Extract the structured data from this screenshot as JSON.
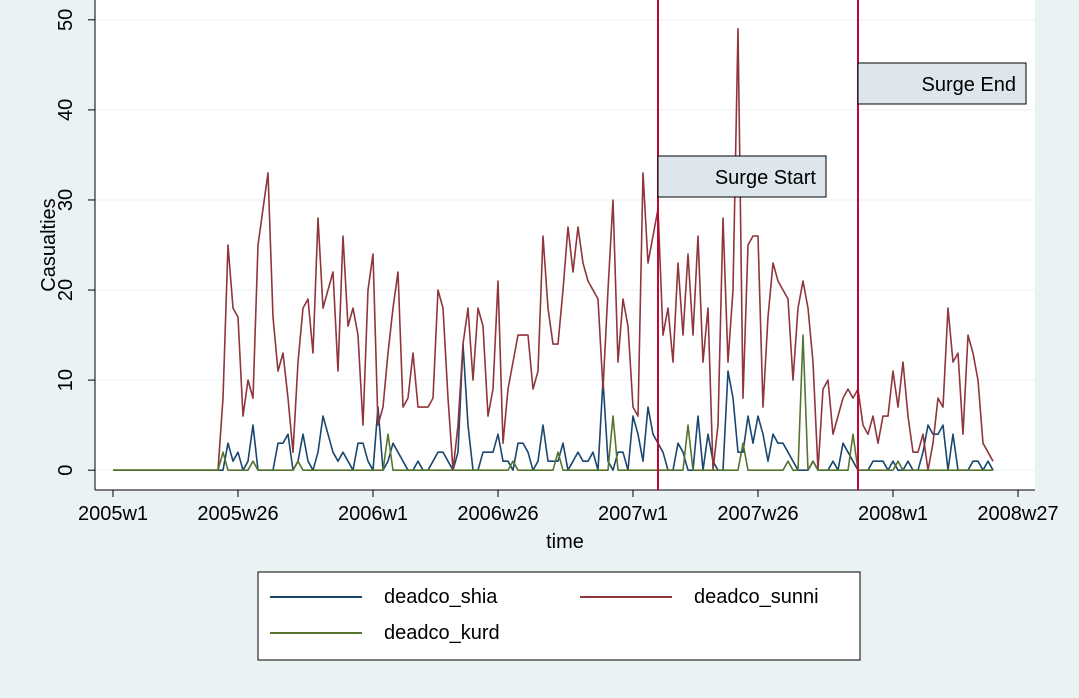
{
  "chart_data": {
    "type": "line",
    "y_label": "Casualties",
    "x_label": "time",
    "x": [
      0,
      1,
      2,
      3,
      4,
      5,
      6,
      7,
      8,
      9,
      10,
      11,
      12,
      13,
      14,
      15,
      16,
      17,
      18,
      19,
      20,
      21,
      22,
      23,
      24,
      25,
      26,
      27,
      28,
      29,
      30,
      31,
      32,
      33,
      34,
      35,
      36,
      37,
      38,
      39,
      40,
      41,
      42,
      43,
      44,
      45,
      46,
      47,
      48,
      49,
      50,
      51,
      52,
      53,
      54,
      55,
      56,
      57,
      58,
      59,
      60,
      61,
      62,
      63,
      64,
      65,
      66,
      67,
      68,
      69,
      70,
      71,
      72,
      73,
      74,
      75,
      76,
      77,
      78,
      79,
      80,
      81,
      82,
      83,
      84,
      85,
      86,
      87,
      88,
      89,
      90,
      91,
      92,
      93,
      94,
      95,
      96,
      97,
      98,
      99,
      100,
      101,
      102,
      103,
      104,
      105,
      106,
      107,
      108,
      109,
      110,
      111,
      112,
      113,
      114,
      115,
      116,
      117,
      118,
      119,
      120,
      121,
      122,
      123,
      124,
      125,
      126,
      127,
      128,
      129,
      130,
      131,
      132,
      133,
      134,
      135,
      136,
      137,
      138,
      139,
      140,
      141,
      142,
      143,
      144,
      145,
      146,
      147,
      148,
      149,
      150,
      151,
      152,
      153,
      154,
      155,
      156,
      157,
      158,
      159,
      160,
      161,
      162,
      163,
      164,
      165,
      166,
      167,
      168,
      169,
      170,
      171,
      172,
      173,
      174,
      175,
      176
    ],
    "series": [
      {
        "name": "deadco_shia",
        "color": "#1a476f",
        "values": [
          0,
          0,
          0,
          0,
          0,
          0,
          0,
          0,
          0,
          0,
          0,
          0,
          0,
          0,
          0,
          0,
          0,
          0,
          0,
          0,
          0,
          0,
          0,
          3,
          1,
          2,
          0,
          1,
          5,
          0,
          0,
          0,
          0,
          3,
          3,
          4,
          0,
          1,
          4,
          1,
          0,
          2,
          6,
          4,
          2,
          1,
          2,
          1,
          0,
          3,
          3,
          1,
          0,
          7,
          0,
          1,
          3,
          2,
          1,
          0,
          0,
          1,
          0,
          0,
          1,
          2,
          2,
          1,
          0,
          2,
          14,
          5,
          0,
          0,
          2,
          2,
          2,
          4,
          1,
          1,
          0,
          3,
          3,
          2,
          0,
          1,
          5,
          1,
          1,
          1,
          3,
          0,
          1,
          2,
          1,
          1,
          2,
          0,
          10,
          1,
          0,
          2,
          2,
          0,
          6,
          4,
          1,
          7,
          4,
          3,
          2,
          0,
          0,
          3,
          2,
          0,
          0,
          6,
          0,
          4,
          1,
          0,
          0,
          11,
          8,
          2,
          2,
          6,
          3,
          6,
          4,
          1,
          4,
          3,
          3,
          2,
          1,
          0,
          0,
          0,
          1,
          0,
          0,
          0,
          1,
          0,
          3,
          2,
          1,
          0,
          0,
          0,
          1,
          1,
          1,
          0,
          1,
          0,
          0,
          1,
          0,
          0,
          2,
          5,
          4,
          4,
          5,
          0,
          4,
          0,
          0,
          0,
          1,
          1,
          0,
          1,
          0
        ]
      },
      {
        "name": "deadco_sunni",
        "color": "#90353b",
        "values": [
          0,
          0,
          0,
          0,
          0,
          0,
          0,
          0,
          0,
          0,
          0,
          0,
          0,
          0,
          0,
          0,
          0,
          0,
          0,
          0,
          0,
          0,
          8,
          25,
          18,
          17,
          6,
          10,
          8,
          25,
          29,
          33,
          17,
          11,
          13,
          8,
          2,
          12,
          18,
          19,
          13,
          28,
          18,
          20,
          22,
          11,
          26,
          16,
          18,
          15,
          5,
          20,
          24,
          5,
          7,
          13,
          18,
          22,
          7,
          8,
          13,
          7,
          7,
          7,
          8,
          20,
          18,
          8,
          0,
          5,
          14,
          18,
          10,
          18,
          16,
          6,
          9,
          21,
          3,
          9,
          12,
          15,
          15,
          15,
          9,
          11,
          26,
          18,
          14,
          14,
          20,
          27,
          22,
          27,
          23,
          21,
          20,
          19,
          9,
          20,
          30,
          12,
          19,
          16,
          7,
          6,
          33,
          23,
          26,
          29,
          15,
          18,
          12,
          23,
          15,
          24,
          15,
          26,
          12,
          18,
          0,
          5,
          28,
          12,
          20,
          49,
          8,
          25,
          26,
          26,
          7,
          17,
          23,
          21,
          20,
          19,
          10,
          18,
          21,
          18,
          12,
          0,
          9,
          10,
          4,
          6,
          8,
          9,
          8,
          9,
          5,
          4,
          6,
          3,
          6,
          6,
          11,
          7,
          12,
          6,
          2,
          2,
          4,
          0,
          3,
          8,
          7,
          18,
          12,
          13,
          4,
          15,
          13,
          10,
          3,
          2,
          1
        ]
      },
      {
        "name": "deadco_kurd",
        "color": "#55752f",
        "values": [
          0,
          0,
          0,
          0,
          0,
          0,
          0,
          0,
          0,
          0,
          0,
          0,
          0,
          0,
          0,
          0,
          0,
          0,
          0,
          0,
          0,
          0,
          2,
          0,
          0,
          0,
          0,
          0,
          1,
          0,
          0,
          0,
          0,
          0,
          0,
          0,
          0,
          1,
          0,
          0,
          0,
          0,
          0,
          0,
          0,
          0,
          0,
          0,
          0,
          0,
          0,
          0,
          0,
          0,
          0,
          4,
          0,
          0,
          0,
          0,
          0,
          0,
          0,
          0,
          0,
          0,
          0,
          0,
          0,
          0,
          0,
          0,
          0,
          0,
          0,
          0,
          0,
          0,
          0,
          0,
          1,
          0,
          0,
          0,
          0,
          0,
          0,
          0,
          0,
          2,
          0,
          0,
          0,
          0,
          0,
          0,
          0,
          0,
          0,
          0,
          6,
          0,
          0,
          0,
          0,
          0,
          0,
          0,
          0,
          0,
          0,
          0,
          0,
          0,
          0,
          5,
          0,
          0,
          0,
          0,
          0,
          0,
          0,
          0,
          0,
          0,
          3,
          0,
          0,
          0,
          0,
          0,
          0,
          0,
          0,
          1,
          0,
          0,
          15,
          0,
          1,
          0,
          0,
          0,
          0,
          0,
          0,
          0,
          4,
          0,
          0,
          0,
          0,
          0,
          0,
          0,
          0,
          1,
          0,
          0,
          0,
          0,
          0,
          0,
          0,
          0,
          0,
          0,
          0,
          0,
          0,
          0,
          0,
          0,
          0,
          0,
          0
        ]
      }
    ],
    "vlines": [
      {
        "x": 109,
        "label": "Surge Start",
        "color": "#c10534"
      },
      {
        "x": 149,
        "label": "Surge End",
        "color": "#c10534"
      }
    ],
    "xlim": [
      -3.6,
      184.4
    ],
    "xticks": [
      {
        "value": 0,
        "label": "2005w1"
      },
      {
        "value": 25,
        "label": "2005w26"
      },
      {
        "value": 52,
        "label": "2006w1"
      },
      {
        "value": 77,
        "label": "2006w26"
      },
      {
        "value": 104,
        "label": "2007w1"
      },
      {
        "value": 129,
        "label": "2007w26"
      },
      {
        "value": 156,
        "label": "2008w1"
      },
      {
        "value": 181,
        "label": "2008w27"
      }
    ],
    "ylim": [
      -2.2,
      52.2
    ],
    "yticks": [
      0,
      10,
      20,
      30,
      40,
      50
    ],
    "grid": true
  }
}
